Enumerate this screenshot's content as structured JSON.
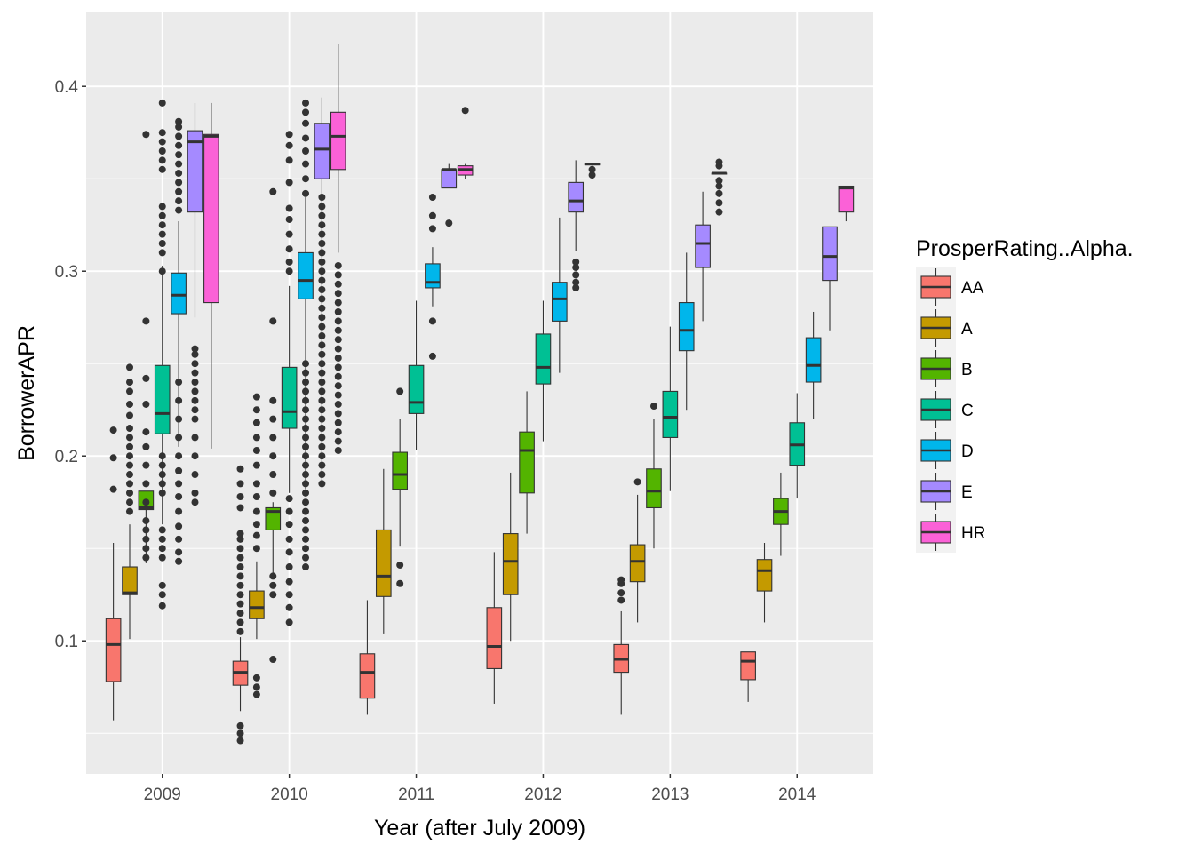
{
  "chart_data": {
    "type": "boxplot",
    "xlabel": "Year (after July 2009)",
    "ylabel": "BorrowerAPR",
    "ylim": [
      0.028,
      0.44
    ],
    "y_ticks": [
      "0.1",
      "0.2",
      "0.3",
      "0.4"
    ],
    "y_tick_values": [
      0.1,
      0.2,
      0.3,
      0.4
    ],
    "categories": [
      "2009",
      "2010",
      "2011",
      "2012",
      "2013",
      "2014"
    ],
    "grid": true,
    "legend": {
      "title": "ProsperRating..Alpha.",
      "position": "right",
      "entries": [
        {
          "name": "AA",
          "color": "#F8766D"
        },
        {
          "name": "A",
          "color": "#C49A00"
        },
        {
          "name": "B",
          "color": "#53B400"
        },
        {
          "name": "C",
          "color": "#00C094"
        },
        {
          "name": "D",
          "color": "#00B6EB"
        },
        {
          "name": "E",
          "color": "#A58AFF"
        },
        {
          "name": "HR",
          "color": "#FB61D7"
        }
      ]
    },
    "groups": [
      {
        "year": "2009",
        "boxes": [
          {
            "rating": "AA",
            "lo": 0.057,
            "q1": 0.078,
            "med": 0.098,
            "q3": 0.112,
            "hi": 0.153,
            "out": [
              0.182,
              0.199,
              0.214
            ]
          },
          {
            "rating": "A",
            "lo": 0.101,
            "q1": 0.125,
            "med": 0.126,
            "q3": 0.14,
            "hi": 0.163,
            "out": [
              0.17,
              0.175,
              0.18,
              0.185,
              0.19,
              0.195,
              0.2,
              0.205,
              0.21,
              0.215,
              0.222,
              0.228,
              0.235,
              0.24,
              0.248
            ]
          },
          {
            "rating": "B",
            "lo": 0.142,
            "q1": 0.171,
            "med": 0.172,
            "q3": 0.181,
            "hi": 0.181,
            "out": [
              0.145,
              0.15,
              0.155,
              0.16,
              0.165,
              0.175,
              0.185,
              0.195,
              0.205,
              0.213,
              0.228,
              0.242,
              0.273,
              0.374
            ]
          },
          {
            "rating": "C",
            "lo": 0.163,
            "q1": 0.212,
            "med": 0.223,
            "q3": 0.249,
            "hi": 0.303,
            "out": [
              0.119,
              0.125,
              0.13,
              0.145,
              0.15,
              0.155,
              0.16,
              0.18,
              0.185,
              0.19,
              0.195,
              0.2,
              0.3,
              0.31,
              0.315,
              0.32,
              0.325,
              0.33,
              0.335,
              0.355,
              0.36,
              0.365,
              0.37,
              0.375,
              0.391
            ]
          },
          {
            "rating": "D",
            "lo": 0.205,
            "q1": 0.277,
            "med": 0.287,
            "q3": 0.299,
            "hi": 0.327,
            "out": [
              0.143,
              0.148,
              0.155,
              0.162,
              0.17,
              0.178,
              0.185,
              0.192,
              0.2,
              0.21,
              0.22,
              0.23,
              0.24,
              0.333,
              0.338,
              0.343,
              0.348,
              0.353,
              0.358,
              0.363,
              0.368,
              0.373,
              0.378,
              0.381
            ]
          },
          {
            "rating": "E",
            "lo": 0.275,
            "q1": 0.332,
            "med": 0.37,
            "q3": 0.376,
            "hi": 0.391,
            "out": [
              0.175,
              0.18,
              0.19,
              0.2,
              0.21,
              0.22,
              0.225,
              0.23,
              0.235,
              0.24,
              0.245,
              0.25,
              0.255,
              0.258
            ]
          },
          {
            "rating": "HR",
            "lo": 0.204,
            "q1": 0.283,
            "med": 0.373,
            "q3": 0.374,
            "hi": 0.391,
            "out": []
          }
        ]
      },
      {
        "year": "2010",
        "boxes": [
          {
            "rating": "AA",
            "lo": 0.062,
            "q1": 0.076,
            "med": 0.083,
            "q3": 0.089,
            "hi": 0.102,
            "out": [
              0.046,
              0.05,
              0.054,
              0.105,
              0.11,
              0.115,
              0.12,
              0.125,
              0.13,
              0.135,
              0.14,
              0.145,
              0.15,
              0.155,
              0.158,
              0.172,
              0.178,
              0.185,
              0.193
            ]
          },
          {
            "rating": "A",
            "lo": 0.101,
            "q1": 0.112,
            "med": 0.118,
            "q3": 0.127,
            "hi": 0.143,
            "out": [
              0.071,
              0.075,
              0.08,
              0.15,
              0.157,
              0.163,
              0.17,
              0.178,
              0.185,
              0.195,
              0.203,
              0.21,
              0.218,
              0.225,
              0.232
            ]
          },
          {
            "rating": "B",
            "lo": 0.136,
            "q1": 0.16,
            "med": 0.17,
            "q3": 0.172,
            "hi": 0.175,
            "out": [
              0.09,
              0.125,
              0.13,
              0.135,
              0.18,
              0.19,
              0.2,
              0.21,
              0.22,
              0.23,
              0.273,
              0.343
            ]
          },
          {
            "rating": "C",
            "lo": 0.18,
            "q1": 0.215,
            "med": 0.224,
            "q3": 0.248,
            "hi": 0.292,
            "out": [
              0.11,
              0.118,
              0.125,
              0.132,
              0.14,
              0.148,
              0.155,
              0.163,
              0.17,
              0.177,
              0.3,
              0.305,
              0.312,
              0.32,
              0.328,
              0.334,
              0.348,
              0.36,
              0.368,
              0.374
            ]
          },
          {
            "rating": "D",
            "lo": 0.182,
            "q1": 0.285,
            "med": 0.295,
            "q3": 0.31,
            "hi": 0.34,
            "out": [
              0.14,
              0.145,
              0.15,
              0.155,
              0.16,
              0.165,
              0.17,
              0.175,
              0.18,
              0.185,
              0.19,
              0.195,
              0.2,
              0.205,
              0.21,
              0.215,
              0.22,
              0.225,
              0.23,
              0.235,
              0.24,
              0.245,
              0.25,
              0.342,
              0.35,
              0.358,
              0.365,
              0.372,
              0.38,
              0.386,
              0.391
            ]
          },
          {
            "rating": "E",
            "lo": 0.185,
            "q1": 0.35,
            "med": 0.366,
            "q3": 0.38,
            "hi": 0.394,
            "out": [
              0.185,
              0.19,
              0.195,
              0.2,
              0.205,
              0.21,
              0.215,
              0.22,
              0.225,
              0.23,
              0.235,
              0.24,
              0.245,
              0.25,
              0.255,
              0.26,
              0.265,
              0.27,
              0.275,
              0.28,
              0.285,
              0.29,
              0.295,
              0.3,
              0.305,
              0.31,
              0.315,
              0.32,
              0.325,
              0.33,
              0.335,
              0.34
            ]
          },
          {
            "rating": "HR",
            "lo": 0.31,
            "q1": 0.355,
            "med": 0.373,
            "q3": 0.386,
            "hi": 0.423,
            "out": [
              0.203,
              0.208,
              0.213,
              0.218,
              0.223,
              0.228,
              0.233,
              0.238,
              0.243,
              0.248,
              0.253,
              0.258,
              0.263,
              0.268,
              0.273,
              0.278,
              0.283,
              0.288,
              0.293,
              0.298,
              0.303
            ]
          }
        ]
      },
      {
        "year": "2011",
        "boxes": [
          {
            "rating": "AA",
            "lo": 0.06,
            "q1": 0.069,
            "med": 0.083,
            "q3": 0.093,
            "hi": 0.122,
            "out": []
          },
          {
            "rating": "A",
            "lo": 0.104,
            "q1": 0.124,
            "med": 0.135,
            "q3": 0.16,
            "hi": 0.193,
            "out": []
          },
          {
            "rating": "B",
            "lo": 0.151,
            "q1": 0.182,
            "med": 0.19,
            "q3": 0.202,
            "hi": 0.22,
            "out": [
              0.131,
              0.141,
              0.235
            ]
          },
          {
            "rating": "C",
            "lo": 0.203,
            "q1": 0.223,
            "med": 0.229,
            "q3": 0.249,
            "hi": 0.284,
            "out": []
          },
          {
            "rating": "D",
            "lo": 0.281,
            "q1": 0.291,
            "med": 0.294,
            "q3": 0.304,
            "hi": 0.313,
            "out": [
              0.254,
              0.273,
              0.323,
              0.33,
              0.34
            ]
          },
          {
            "rating": "E",
            "lo": 0.345,
            "q1": 0.345,
            "med": 0.355,
            "q3": 0.355,
            "hi": 0.358,
            "out": [
              0.326
            ]
          },
          {
            "rating": "HR",
            "lo": 0.35,
            "q1": 0.352,
            "med": 0.355,
            "q3": 0.357,
            "hi": 0.358,
            "out": [
              0.387
            ]
          }
        ]
      },
      {
        "year": "2012",
        "boxes": [
          {
            "rating": "AA",
            "lo": 0.066,
            "q1": 0.085,
            "med": 0.097,
            "q3": 0.118,
            "hi": 0.148,
            "out": []
          },
          {
            "rating": "A",
            "lo": 0.1,
            "q1": 0.125,
            "med": 0.143,
            "q3": 0.158,
            "hi": 0.191,
            "out": []
          },
          {
            "rating": "B",
            "lo": 0.158,
            "q1": 0.18,
            "med": 0.203,
            "q3": 0.213,
            "hi": 0.235,
            "out": []
          },
          {
            "rating": "C",
            "lo": 0.208,
            "q1": 0.239,
            "med": 0.248,
            "q3": 0.266,
            "hi": 0.284,
            "out": []
          },
          {
            "rating": "D",
            "lo": 0.245,
            "q1": 0.273,
            "med": 0.285,
            "q3": 0.294,
            "hi": 0.329,
            "out": []
          },
          {
            "rating": "E",
            "lo": 0.311,
            "q1": 0.332,
            "med": 0.338,
            "q3": 0.348,
            "hi": 0.36,
            "out": [
              0.291,
              0.294,
              0.298,
              0.302,
              0.305
            ]
          },
          {
            "rating": "HR",
            "lo": 0.358,
            "q1": 0.358,
            "med": 0.358,
            "q3": 0.358,
            "hi": 0.358,
            "out": [
              0.352,
              0.355
            ]
          }
        ]
      },
      {
        "year": "2013",
        "boxes": [
          {
            "rating": "AA",
            "lo": 0.06,
            "q1": 0.083,
            "med": 0.09,
            "q3": 0.098,
            "hi": 0.116,
            "out": [
              0.122,
              0.126,
              0.131,
              0.133
            ]
          },
          {
            "rating": "A",
            "lo": 0.11,
            "q1": 0.132,
            "med": 0.143,
            "q3": 0.152,
            "hi": 0.179,
            "out": [
              0.186
            ]
          },
          {
            "rating": "B",
            "lo": 0.15,
            "q1": 0.172,
            "med": 0.181,
            "q3": 0.193,
            "hi": 0.22,
            "out": [
              0.227
            ]
          },
          {
            "rating": "C",
            "lo": 0.181,
            "q1": 0.21,
            "med": 0.221,
            "q3": 0.235,
            "hi": 0.27,
            "out": []
          },
          {
            "rating": "D",
            "lo": 0.225,
            "q1": 0.257,
            "med": 0.268,
            "q3": 0.283,
            "hi": 0.31,
            "out": []
          },
          {
            "rating": "E",
            "lo": 0.273,
            "q1": 0.302,
            "med": 0.315,
            "q3": 0.325,
            "hi": 0.343,
            "out": []
          },
          {
            "rating": "HR",
            "lo": 0.353,
            "q1": 0.353,
            "med": 0.353,
            "q3": 0.353,
            "hi": 0.353,
            "out": [
              0.332,
              0.337,
              0.342,
              0.346,
              0.349,
              0.357,
              0.359
            ]
          }
        ]
      },
      {
        "year": "2014",
        "boxes": [
          {
            "rating": "AA",
            "lo": 0.067,
            "q1": 0.079,
            "med": 0.089,
            "q3": 0.094,
            "hi": 0.094,
            "out": []
          },
          {
            "rating": "A",
            "lo": 0.11,
            "q1": 0.127,
            "med": 0.138,
            "q3": 0.144,
            "hi": 0.153,
            "out": []
          },
          {
            "rating": "B",
            "lo": 0.146,
            "q1": 0.163,
            "med": 0.17,
            "q3": 0.177,
            "hi": 0.191,
            "out": []
          },
          {
            "rating": "C",
            "lo": 0.177,
            "q1": 0.195,
            "med": 0.206,
            "q3": 0.218,
            "hi": 0.234,
            "out": []
          },
          {
            "rating": "D",
            "lo": 0.22,
            "q1": 0.24,
            "med": 0.249,
            "q3": 0.264,
            "hi": 0.278,
            "out": []
          },
          {
            "rating": "E",
            "lo": 0.268,
            "q1": 0.295,
            "med": 0.308,
            "q3": 0.324,
            "hi": 0.324,
            "out": []
          },
          {
            "rating": "HR",
            "lo": 0.327,
            "q1": 0.332,
            "med": 0.345,
            "q3": 0.346,
            "hi": 0.346,
            "out": []
          }
        ]
      }
    ]
  }
}
